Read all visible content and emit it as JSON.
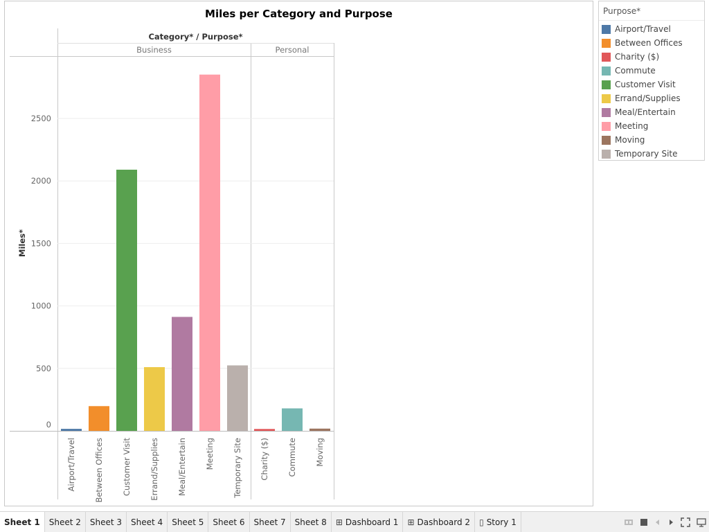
{
  "worksheet": {
    "title": "Miles per Category and Purpose",
    "header_label": "Category* / Purpose*",
    "categories": [
      "Business",
      "Personal"
    ],
    "ylabel": "Miles*"
  },
  "legend": {
    "title": "Purpose*",
    "items": [
      {
        "label": "Airport/Travel",
        "color": "#4e79a7"
      },
      {
        "label": "Between Offices",
        "color": "#f28e2b"
      },
      {
        "label": "Charity ($)",
        "color": "#e15759"
      },
      {
        "label": "Commute",
        "color": "#76b7b2"
      },
      {
        "label": "Customer Visit",
        "color": "#59a14f"
      },
      {
        "label": "Errand/Supplies",
        "color": "#edc948"
      },
      {
        "label": "Meal/Entertain",
        "color": "#b07aa1"
      },
      {
        "label": "Meeting",
        "color": "#ff9da7"
      },
      {
        "label": "Moving",
        "color": "#9c755f"
      },
      {
        "label": "Temporary Site",
        "color": "#bab0ac"
      }
    ]
  },
  "chart_data": {
    "type": "bar",
    "title": "Miles per Category and Purpose",
    "ylabel": "Miles*",
    "xlabel": "Category* / Purpose*",
    "ylim": [
      0,
      2960
    ],
    "yticks": [
      0,
      500,
      1000,
      1500,
      2000,
      2500
    ],
    "grid": true,
    "legend_position": "right",
    "groups": [
      {
        "name": "Business",
        "bars": [
          {
            "label": "Airport/Travel",
            "value": 16,
            "color": "#4e79a7"
          },
          {
            "label": "Between Offices",
            "value": 198,
            "color": "#f28e2b"
          },
          {
            "label": "Customer Visit",
            "value": 2090,
            "color": "#59a14f"
          },
          {
            "label": "Errand/Supplies",
            "value": 510,
            "color": "#edc948"
          },
          {
            "label": "Meal/Entertain",
            "value": 912,
            "color": "#b07aa1"
          },
          {
            "label": "Meeting",
            "value": 2851,
            "color": "#ff9da7"
          },
          {
            "label": "Temporary Site",
            "value": 524,
            "color": "#bab0ac"
          }
        ]
      },
      {
        "name": "Personal",
        "bars": [
          {
            "label": "Charity ($)",
            "value": 15,
            "color": "#e15759"
          },
          {
            "label": "Commute",
            "value": 180,
            "color": "#76b7b2"
          },
          {
            "label": "Moving",
            "value": 18,
            "color": "#9c755f"
          }
        ]
      }
    ]
  },
  "tabs": [
    {
      "label": "Sheet 1",
      "active": true,
      "icon": ""
    },
    {
      "label": "Sheet 2",
      "icon": ""
    },
    {
      "label": "Sheet 3",
      "icon": ""
    },
    {
      "label": "Sheet 4",
      "icon": ""
    },
    {
      "label": "Sheet 5",
      "icon": ""
    },
    {
      "label": "Sheet 6",
      "icon": ""
    },
    {
      "label": "Sheet 7",
      "icon": ""
    },
    {
      "label": "Sheet 8",
      "icon": ""
    },
    {
      "label": "Dashboard 1",
      "icon": "dashboard-icon"
    },
    {
      "label": "Dashboard 2",
      "icon": "dashboard-icon"
    },
    {
      "label": "Story 1",
      "icon": "story-icon"
    }
  ],
  "nav_icons": [
    "filmstrip-icon",
    "grid-view-icon",
    "previous-icon",
    "next-icon",
    "fullscreen-icon",
    "presentation-icon"
  ]
}
